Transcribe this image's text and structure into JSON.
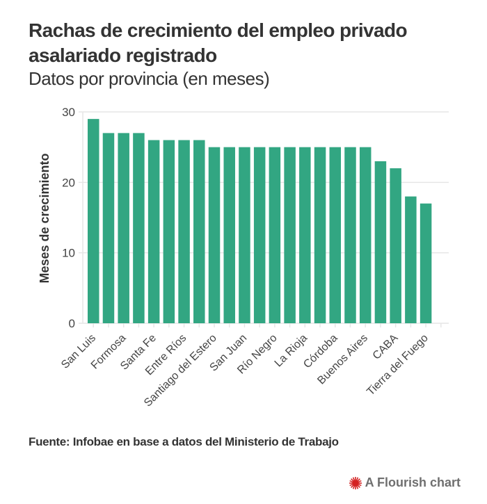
{
  "header": {
    "title": "Rachas de crecimiento del empleo privado asalariado registrado",
    "subtitle": "Datos por provincia (en meses)"
  },
  "footer": {
    "source": "Fuente: Infobae en base a datos del Ministerio de Trabajo",
    "credit": "A Flourish chart",
    "credit_icon": "flourish-logo-icon"
  },
  "colors": {
    "bar": "#32a682",
    "grid": "#e6e6e6",
    "text": "#333333",
    "credit_icon": "#d42222"
  },
  "chart_data": {
    "type": "bar",
    "title": "Rachas de crecimiento del empleo privado asalariado registrado",
    "subtitle": "Datos por provincia (en meses)",
    "xlabel": "",
    "ylabel": "Meses de crecimiento",
    "ylim": [
      0,
      30
    ],
    "yticks": [
      0,
      10,
      20,
      30
    ],
    "grid": true,
    "legend": "none",
    "categories": [
      "San Luis",
      "",
      "Formosa",
      "",
      "Santa Fe",
      "",
      "Entre Ríos",
      "",
      "Santiago del Estero",
      "",
      "San Juan",
      "",
      "Río Negro",
      "",
      "La Rioja",
      "",
      "Córdoba",
      "",
      "Buenos Aires",
      "",
      "CABA",
      "",
      "Tierra del Fuego"
    ],
    "category_label_note": "Only every other category label is printed; unlabeled bars have hidden labels",
    "values": [
      29,
      27,
      27,
      27,
      26,
      26,
      26,
      26,
      25,
      25,
      25,
      25,
      25,
      25,
      25,
      25,
      25,
      25,
      25,
      23,
      22,
      18,
      17
    ]
  }
}
